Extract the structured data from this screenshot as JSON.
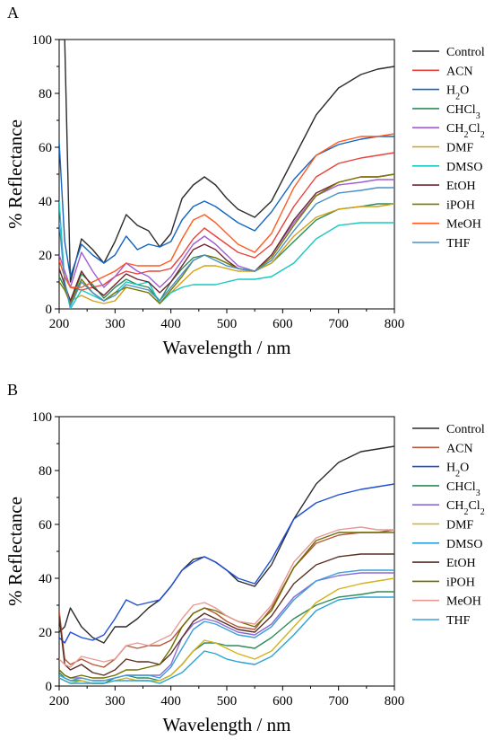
{
  "figure": {
    "panels": [
      "A",
      "B"
    ]
  },
  "chart_data": [
    {
      "panel": "A",
      "type": "line",
      "xlabel": "Wavelength / nm",
      "ylabel": "% Reflectance",
      "xlim": [
        200,
        800
      ],
      "ylim": [
        0,
        100
      ],
      "xticks": [
        200,
        300,
        400,
        500,
        600,
        700,
        800
      ],
      "yticks": [
        0,
        20,
        40,
        60,
        80,
        100
      ],
      "grid": false,
      "legend": "right",
      "x": [
        200,
        210,
        220,
        240,
        260,
        280,
        300,
        320,
        340,
        360,
        380,
        400,
        420,
        440,
        460,
        480,
        500,
        520,
        550,
        580,
        620,
        660,
        700,
        740,
        770,
        800
      ],
      "series": [
        {
          "name": "Control",
          "color": "#2b2b2b",
          "values": [
            100,
            100,
            10,
            26,
            22,
            17,
            25,
            35,
            31,
            29,
            23,
            28,
            41,
            46,
            49,
            46,
            41,
            37,
            34,
            40,
            56,
            72,
            82,
            87,
            89,
            90
          ]
        },
        {
          "name": "ACN",
          "color": "#e8413a",
          "values": [
            18,
            12,
            8,
            7,
            8,
            9,
            12,
            14,
            13,
            14,
            14,
            15,
            20,
            26,
            30,
            27,
            24,
            21,
            19,
            24,
            38,
            49,
            54,
            56,
            57,
            58
          ]
        },
        {
          "name": "H₂O",
          "color": "#1565c0",
          "values": [
            62,
            25,
            12,
            24,
            20,
            17,
            20,
            27,
            22,
            24,
            23,
            25,
            33,
            38,
            40,
            38,
            35,
            32,
            29,
            36,
            48,
            57,
            61,
            63,
            64,
            64
          ]
        },
        {
          "name": "CHCl₃",
          "color": "#2e8b57",
          "values": [
            12,
            8,
            2,
            13,
            9,
            4,
            8,
            11,
            9,
            8,
            3,
            10,
            15,
            19,
            20,
            19,
            17,
            15,
            14,
            17,
            25,
            33,
            37,
            38,
            39,
            39
          ]
        },
        {
          "name": "CH₂Cl₂",
          "color": "#a05cd6",
          "values": [
            20,
            14,
            8,
            21,
            14,
            8,
            12,
            17,
            14,
            12,
            8,
            12,
            18,
            24,
            27,
            24,
            20,
            16,
            14,
            20,
            32,
            42,
            46,
            47,
            48,
            48
          ]
        },
        {
          "name": "DMF",
          "color": "#d4a017",
          "values": [
            15,
            9,
            3,
            5,
            3,
            2,
            3,
            8,
            7,
            6,
            2,
            6,
            10,
            14,
            16,
            16,
            15,
            14,
            14,
            17,
            27,
            34,
            37,
            38,
            38,
            39
          ]
        },
        {
          "name": "DMSO",
          "color": "#17c9c0",
          "values": [
            40,
            10,
            0,
            7,
            5,
            3,
            6,
            10,
            9,
            10,
            2,
            6,
            8,
            9,
            9,
            9,
            10,
            11,
            11,
            12,
            17,
            26,
            31,
            32,
            32,
            32
          ]
        },
        {
          "name": "EtOH",
          "color": "#6e2632",
          "values": [
            15,
            9,
            3,
            14,
            8,
            5,
            9,
            13,
            11,
            10,
            6,
            10,
            16,
            22,
            24,
            22,
            18,
            15,
            14,
            20,
            33,
            43,
            47,
            49,
            49,
            50
          ]
        },
        {
          "name": "iPOH",
          "color": "#7a7a00",
          "values": [
            10,
            7,
            2,
            11,
            6,
            3,
            6,
            8,
            7,
            6,
            2,
            7,
            12,
            18,
            20,
            19,
            17,
            15,
            14,
            19,
            31,
            42,
            47,
            49,
            49,
            50
          ]
        },
        {
          "name": "MeOH",
          "color": "#ff5a1f",
          "values": [
            18,
            12,
            8,
            8,
            10,
            12,
            14,
            17,
            16,
            16,
            16,
            18,
            26,
            33,
            35,
            32,
            28,
            24,
            21,
            28,
            45,
            57,
            62,
            64,
            64,
            65
          ]
        },
        {
          "name": "THF",
          "color": "#4a90c8",
          "values": [
            32,
            10,
            1,
            10,
            6,
            3,
            5,
            9,
            8,
            7,
            3,
            8,
            13,
            18,
            20,
            18,
            16,
            15,
            14,
            18,
            29,
            39,
            43,
            44,
            45,
            45
          ]
        }
      ]
    },
    {
      "panel": "B",
      "type": "line",
      "xlabel": "Wavelength / nm",
      "ylabel": "% Reflectance",
      "xlim": [
        200,
        800
      ],
      "ylim": [
        0,
        100
      ],
      "xticks": [
        200,
        300,
        400,
        500,
        600,
        700,
        800
      ],
      "yticks": [
        0,
        20,
        40,
        60,
        80,
        100
      ],
      "grid": false,
      "legend": "right",
      "x": [
        200,
        210,
        220,
        240,
        260,
        280,
        300,
        320,
        340,
        360,
        380,
        400,
        420,
        440,
        460,
        480,
        500,
        520,
        550,
        580,
        620,
        660,
        700,
        740,
        770,
        800
      ],
      "series": [
        {
          "name": "Control",
          "color": "#2b2b2b",
          "values": [
            20,
            22,
            29,
            22,
            18,
            16,
            22,
            22,
            25,
            29,
            32,
            37,
            43,
            47,
            48,
            46,
            43,
            39,
            37,
            45,
            62,
            75,
            83,
            87,
            88,
            89
          ]
        },
        {
          "name": "ACN",
          "color": "#b5573a",
          "values": [
            28,
            10,
            8,
            10,
            8,
            7,
            10,
            15,
            14,
            15,
            15,
            17,
            22,
            27,
            29,
            27,
            24,
            22,
            21,
            29,
            44,
            53,
            56,
            57,
            57,
            58
          ]
        },
        {
          "name": "H₂O",
          "color": "#1e4fd6",
          "values": [
            18,
            16,
            20,
            18,
            17,
            19,
            25,
            32,
            30,
            31,
            32,
            37,
            43,
            46,
            48,
            46,
            43,
            40,
            38,
            47,
            62,
            68,
            71,
            73,
            74,
            75
          ]
        },
        {
          "name": "CHCl₃",
          "color": "#2e8b57",
          "values": [
            5,
            3,
            2,
            2,
            1,
            1,
            3,
            4,
            3,
            3,
            2,
            4,
            8,
            13,
            16,
            16,
            15,
            15,
            14,
            18,
            25,
            30,
            33,
            34,
            35,
            35
          ]
        },
        {
          "name": "CH₂Cl₂",
          "color": "#8a6bd6",
          "values": [
            6,
            4,
            3,
            3,
            2,
            2,
            3,
            4,
            4,
            4,
            4,
            8,
            18,
            23,
            25,
            24,
            22,
            20,
            19,
            23,
            33,
            39,
            41,
            42,
            42,
            42
          ]
        },
        {
          "name": "DMF",
          "color": "#d4b21a",
          "values": [
            3,
            2,
            1,
            2,
            1,
            1,
            2,
            3,
            2,
            2,
            2,
            4,
            8,
            13,
            17,
            16,
            14,
            12,
            10,
            13,
            22,
            31,
            36,
            38,
            39,
            40
          ]
        },
        {
          "name": "DMSO",
          "color": "#29a3d6",
          "values": [
            3,
            2,
            1,
            1,
            1,
            1,
            2,
            2,
            2,
            2,
            1,
            3,
            5,
            9,
            13,
            12,
            10,
            9,
            8,
            11,
            19,
            28,
            32,
            33,
            33,
            33
          ]
        },
        {
          "name": "EtOH",
          "color": "#5a2f24",
          "values": [
            26,
            8,
            6,
            8,
            5,
            4,
            6,
            10,
            9,
            9,
            8,
            12,
            18,
            24,
            27,
            25,
            23,
            21,
            20,
            26,
            38,
            45,
            48,
            49,
            49,
            49
          ]
        },
        {
          "name": "iPOH",
          "color": "#6e6e00",
          "values": [
            6,
            4,
            3,
            4,
            3,
            3,
            4,
            6,
            6,
            7,
            8,
            14,
            22,
            27,
            29,
            28,
            26,
            24,
            22,
            28,
            44,
            54,
            57,
            57,
            57,
            57
          ]
        },
        {
          "name": "MeOH",
          "color": "#e79a95",
          "values": [
            10,
            8,
            7,
            11,
            10,
            9,
            10,
            15,
            16,
            15,
            17,
            19,
            25,
            30,
            31,
            29,
            26,
            24,
            23,
            30,
            46,
            55,
            58,
            59,
            58,
            58
          ]
        },
        {
          "name": "THF",
          "color": "#3aa0d8",
          "values": [
            4,
            3,
            2,
            3,
            2,
            2,
            3,
            4,
            4,
            4,
            3,
            7,
            14,
            21,
            24,
            23,
            21,
            19,
            18,
            22,
            32,
            39,
            42,
            43,
            43,
            43
          ]
        }
      ]
    }
  ]
}
